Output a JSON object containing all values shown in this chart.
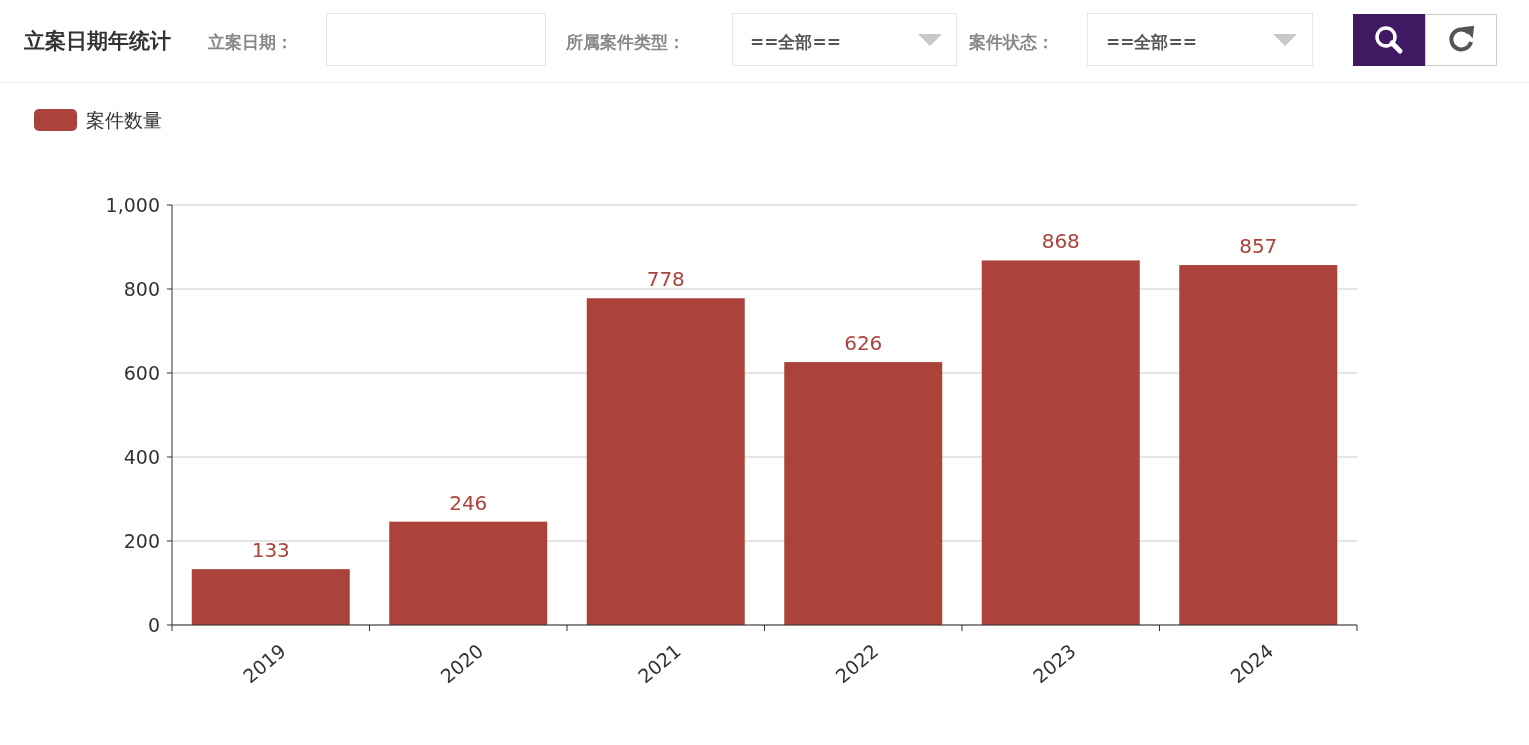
{
  "chart_data": {
    "type": "bar",
    "title": "立案日期年统计",
    "annotations": [
      "立案日期：",
      "所属案件类型：",
      "==全部==",
      "案件状态：",
      "==全部=="
    ],
    "categories": [
      "2019",
      "2020",
      "2021",
      "2022",
      "2023",
      "2024"
    ],
    "series": [
      {
        "name": "案件数量",
        "color": "#ab433a",
        "values": [
          133,
          246,
          778,
          626,
          868,
          857
        ]
      }
    ],
    "ylim": [
      0,
      1000
    ],
    "yticks": [
      0,
      200,
      400,
      600,
      800,
      {
        "value": 1000,
        "label": "1,000"
      }
    ],
    "grid": "y",
    "legend": "top left",
    "data_labels": true
  }
}
